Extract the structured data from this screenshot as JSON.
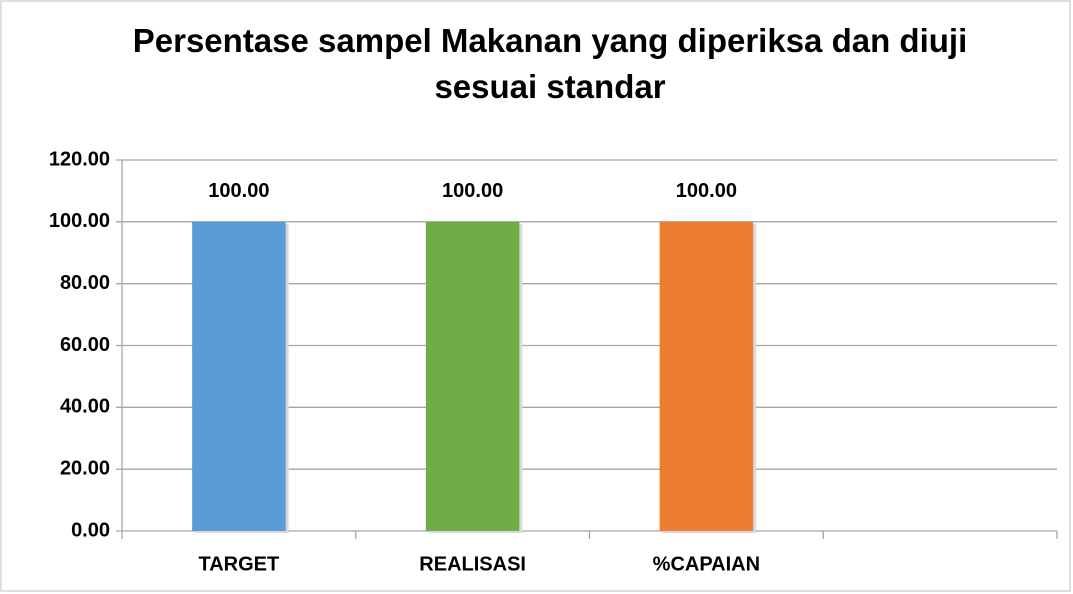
{
  "chart_data": {
    "type": "bar",
    "title": "Persentase sampel Makanan yang diperiksa dan diuji sesuai standar",
    "categories": [
      "TARGET",
      "REALISASI",
      "%CAPAIAN",
      null
    ],
    "values": [
      100,
      100,
      100,
      null
    ],
    "value_labels": [
      "100.00",
      "100.00",
      "100.00",
      null
    ],
    "colors": [
      "#5b9bd5",
      "#70ad47",
      "#ed7d31"
    ],
    "ylim": [
      0,
      120
    ],
    "yticks": [
      {
        "value": 0,
        "label": "0.00"
      },
      {
        "value": 20,
        "label": "20.00"
      },
      {
        "value": 40,
        "label": "40.00"
      },
      {
        "value": 60,
        "label": "60.00"
      },
      {
        "value": 80,
        "label": "80.00"
      },
      {
        "value": 100,
        "label": "100.00"
      },
      {
        "value": 120,
        "label": "120.00"
      }
    ],
    "grid": true
  }
}
